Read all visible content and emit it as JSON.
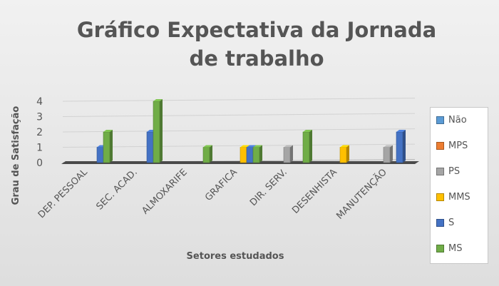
{
  "chart_data": {
    "type": "bar",
    "title_lines": [
      "Gráfico Expectativa da Jornada",
      "de trabalho"
    ],
    "xlabel": "Setores estudados",
    "ylabel": "Grau de Satisfação",
    "ylim": [
      0,
      4
    ],
    "yticks": [
      "0",
      "1",
      "2",
      "3",
      "4"
    ],
    "grid": true,
    "legend_position": "right",
    "categories": [
      "DEP. PESSOAL",
      "SEC. ACAD.",
      "ALMOXARIFE",
      "GRAFICA",
      "DIR. SERV.",
      "DESENHISTA",
      "MANUTENÇÃO"
    ],
    "series": [
      {
        "name": "Não",
        "color": "#5b9bd5",
        "values": [
          0,
          0,
          0,
          0,
          0,
          0,
          0
        ]
      },
      {
        "name": "MPS",
        "color": "#ed7d31",
        "values": [
          0,
          0,
          0,
          0,
          0,
          0,
          0
        ]
      },
      {
        "name": "PS",
        "color": "#a5a5a5",
        "values": [
          0,
          0,
          0,
          0,
          1,
          0,
          1
        ]
      },
      {
        "name": "MMS",
        "color": "#ffc000",
        "values": [
          0,
          0,
          0,
          1,
          0,
          1,
          0
        ]
      },
      {
        "name": "S",
        "color": "#4472c4",
        "values": [
          1,
          2,
          0,
          1,
          0,
          0,
          2
        ]
      },
      {
        "name": "MS",
        "color": "#70ad47",
        "values": [
          2,
          4,
          1,
          1,
          2,
          0,
          0
        ]
      }
    ]
  }
}
